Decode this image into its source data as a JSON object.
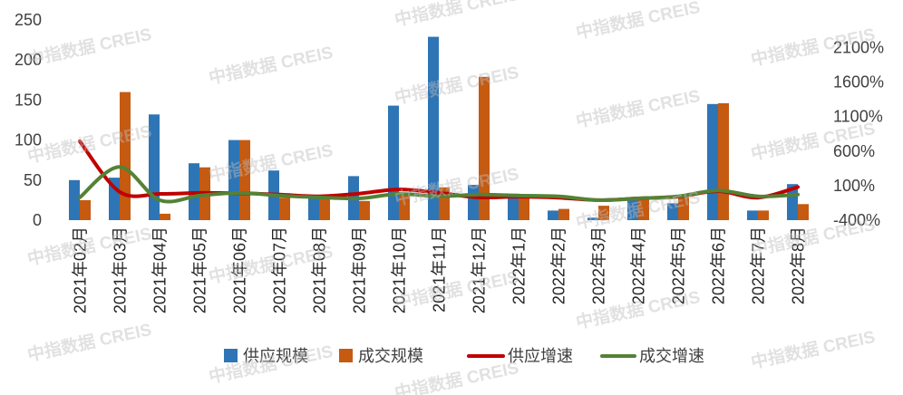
{
  "chart_data": {
    "type": "bar",
    "categories": [
      "2021年02月",
      "2021年03月",
      "2021年04月",
      "2021年05月",
      "2021年06月",
      "2021年07月",
      "2021年08月",
      "2021年09月",
      "2021年10月",
      "2021年11月",
      "2021年12月",
      "2022年1月",
      "2022年2月",
      "2022年3月",
      "2022年4月",
      "2022年5月",
      "2022年6月",
      "2022年7月",
      "2022年8月"
    ],
    "series": [
      {
        "name": "供应规模",
        "type": "bar",
        "axis": "left",
        "color": "#2e75b6",
        "values": [
          50,
          53,
          132,
          71,
          100,
          62,
          31,
          55,
          143,
          229,
          44,
          33,
          12,
          3,
          28,
          21,
          145,
          12,
          45
        ]
      },
      {
        "name": "成交规模",
        "type": "bar",
        "axis": "left",
        "color": "#c55a11",
        "values": [
          25,
          160,
          8,
          66,
          100,
          28,
          31,
          24,
          34,
          41,
          179,
          31,
          14,
          18,
          26,
          28,
          146,
          12,
          20
        ]
      },
      {
        "name": "供应增速",
        "type": "line",
        "axis": "right",
        "unit": "%",
        "smooth": true,
        "color": "#c00000",
        "values": [
          742,
          10,
          -20,
          -5,
          -10,
          -30,
          -55,
          -15,
          45,
          -5,
          -70,
          -60,
          -75,
          -110,
          -85,
          -60,
          20,
          -75,
          80
        ]
      },
      {
        "name": "成交增速",
        "type": "line",
        "axis": "right",
        "unit": "%",
        "smooth": true,
        "color": "#548235",
        "values": [
          -70,
          370,
          -110,
          -45,
          -5,
          -45,
          -70,
          -85,
          -20,
          -55,
          -30,
          -45,
          -55,
          -110,
          -85,
          -55,
          30,
          -55,
          -30
        ]
      }
    ],
    "y_left": {
      "range": [
        0,
        250
      ],
      "ticks": [
        0,
        50,
        100,
        150,
        200,
        250
      ],
      "tick_labels": [
        "0",
        "50",
        "100",
        "150",
        "200",
        "250"
      ]
    },
    "y_right": {
      "range": [
        -400,
        2500
      ],
      "ticks": [
        -400,
        100,
        600,
        1100,
        1600,
        2100
      ],
      "tick_labels": [
        "-400%",
        "100%",
        "600%",
        "1100%",
        "1600%",
        "2100%"
      ]
    },
    "title": "",
    "xlabel": "",
    "ylabel": "",
    "grid": false,
    "legend_position": "bottom"
  },
  "watermark": "中指数据 CREIS"
}
